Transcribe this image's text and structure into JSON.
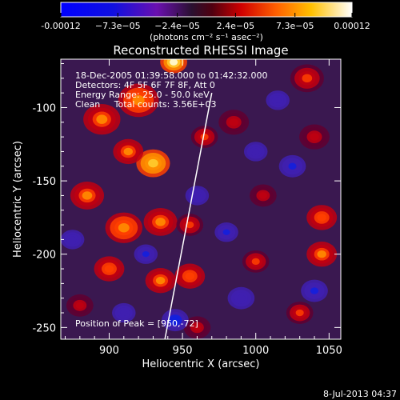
{
  "chart_data": {
    "type": "heatmap",
    "title": "Reconstructed RHESSI Image",
    "xlabel": "Heliocentric X (arcsec)",
    "ylabel": "Heliocentric Y (arcsec)",
    "xlim": [
      867,
      1058
    ],
    "ylim": [
      -258,
      -67
    ],
    "x_ticks": [
      900,
      950,
      1000,
      1050
    ],
    "x_tick_labels": [
      "900",
      "950",
      "1000",
      "1050"
    ],
    "y_ticks": [
      -100,
      -150,
      -200,
      -250
    ],
    "y_tick_labels": [
      "-100",
      "-150",
      "-200",
      "-250"
    ],
    "colorbar": {
      "range": [
        -0.00012,
        0.00012
      ],
      "tick_values": [
        -0.00012,
        -7.3e-05,
        -2.4e-05,
        2.4e-05,
        7.3e-05,
        0.00012
      ],
      "tick_labels": [
        "-0.00012",
        "−7.3e−05",
        "−2.4e−05",
        "2.4e−05",
        "7.3e−05",
        "0.00012"
      ],
      "units_label": "(photons cm⁻² s⁻¹ asec⁻²)"
    },
    "limb_line": {
      "x1": 938,
      "y1": -258,
      "x2": 970,
      "y2": -90
    },
    "annotations": [
      "18-Dec-2005 01:39:58.000 to 01:42:32.000",
      "Detectors: 4F 5F 6F 7F 8F, Att 0",
      "Energy Range: 25.0 - 50.0 keV",
      "Clean     Total counts: 3.56E+03"
    ],
    "peak_text": "Position of Peak = [950,-72]",
    "features": [
      {
        "x": 944,
        "y": -69,
        "w": 8,
        "v": 1.0
      },
      {
        "x": 920,
        "y": -95,
        "w": 12,
        "v": 0.6
      },
      {
        "x": 895,
        "y": -108,
        "w": 11,
        "v": 0.55
      },
      {
        "x": 930,
        "y": -138,
        "w": 10,
        "v": 0.85
      },
      {
        "x": 913,
        "y": -130,
        "w": 9,
        "v": 0.5
      },
      {
        "x": 885,
        "y": -160,
        "w": 10,
        "v": 0.55
      },
      {
        "x": 910,
        "y": -182,
        "w": 11,
        "v": 0.6
      },
      {
        "x": 935,
        "y": -178,
        "w": 10,
        "v": 0.5
      },
      {
        "x": 900,
        "y": -210,
        "w": 9,
        "v": 0.45
      },
      {
        "x": 935,
        "y": -218,
        "w": 9,
        "v": 0.5
      },
      {
        "x": 955,
        "y": -215,
        "w": 9,
        "v": 0.45
      },
      {
        "x": 955,
        "y": -180,
        "w": 8,
        "v": 0.35
      },
      {
        "x": 965,
        "y": -120,
        "w": 8,
        "v": 0.35
      },
      {
        "x": 985,
        "y": -110,
        "w": 9,
        "v": 0.3
      },
      {
        "x": 1035,
        "y": -80,
        "w": 10,
        "v": 0.35
      },
      {
        "x": 1040,
        "y": -120,
        "w": 9,
        "v": 0.3
      },
      {
        "x": 1045,
        "y": -175,
        "w": 9,
        "v": 0.45
      },
      {
        "x": 1045,
        "y": -200,
        "w": 9,
        "v": 0.5
      },
      {
        "x": 1030,
        "y": -240,
        "w": 8,
        "v": 0.4
      },
      {
        "x": 1005,
        "y": -160,
        "w": 8,
        "v": 0.3
      },
      {
        "x": 1000,
        "y": -205,
        "w": 8,
        "v": 0.35
      },
      {
        "x": 880,
        "y": -235,
        "w": 8,
        "v": 0.3
      },
      {
        "x": 960,
        "y": -250,
        "w": 8,
        "v": 0.25
      },
      {
        "x": 910,
        "y": -240,
        "w": 7,
        "v": -0.3
      },
      {
        "x": 945,
        "y": -245,
        "w": 8,
        "v": -0.45
      },
      {
        "x": 925,
        "y": -200,
        "w": 7,
        "v": -0.35
      },
      {
        "x": 960,
        "y": -160,
        "w": 7,
        "v": -0.3
      },
      {
        "x": 1025,
        "y": -140,
        "w": 8,
        "v": -0.4
      },
      {
        "x": 1000,
        "y": -130,
        "w": 7,
        "v": -0.3
      },
      {
        "x": 1040,
        "y": -225,
        "w": 8,
        "v": -0.35
      },
      {
        "x": 990,
        "y": -230,
        "w": 8,
        "v": -0.3
      },
      {
        "x": 875,
        "y": -190,
        "w": 7,
        "v": -0.3
      },
      {
        "x": 1015,
        "y": -95,
        "w": 7,
        "v": -0.3
      },
      {
        "x": 980,
        "y": -185,
        "w": 7,
        "v": -0.35
      }
    ]
  },
  "footer": {
    "date_stamp": "8-Jul-2013 04:37"
  }
}
